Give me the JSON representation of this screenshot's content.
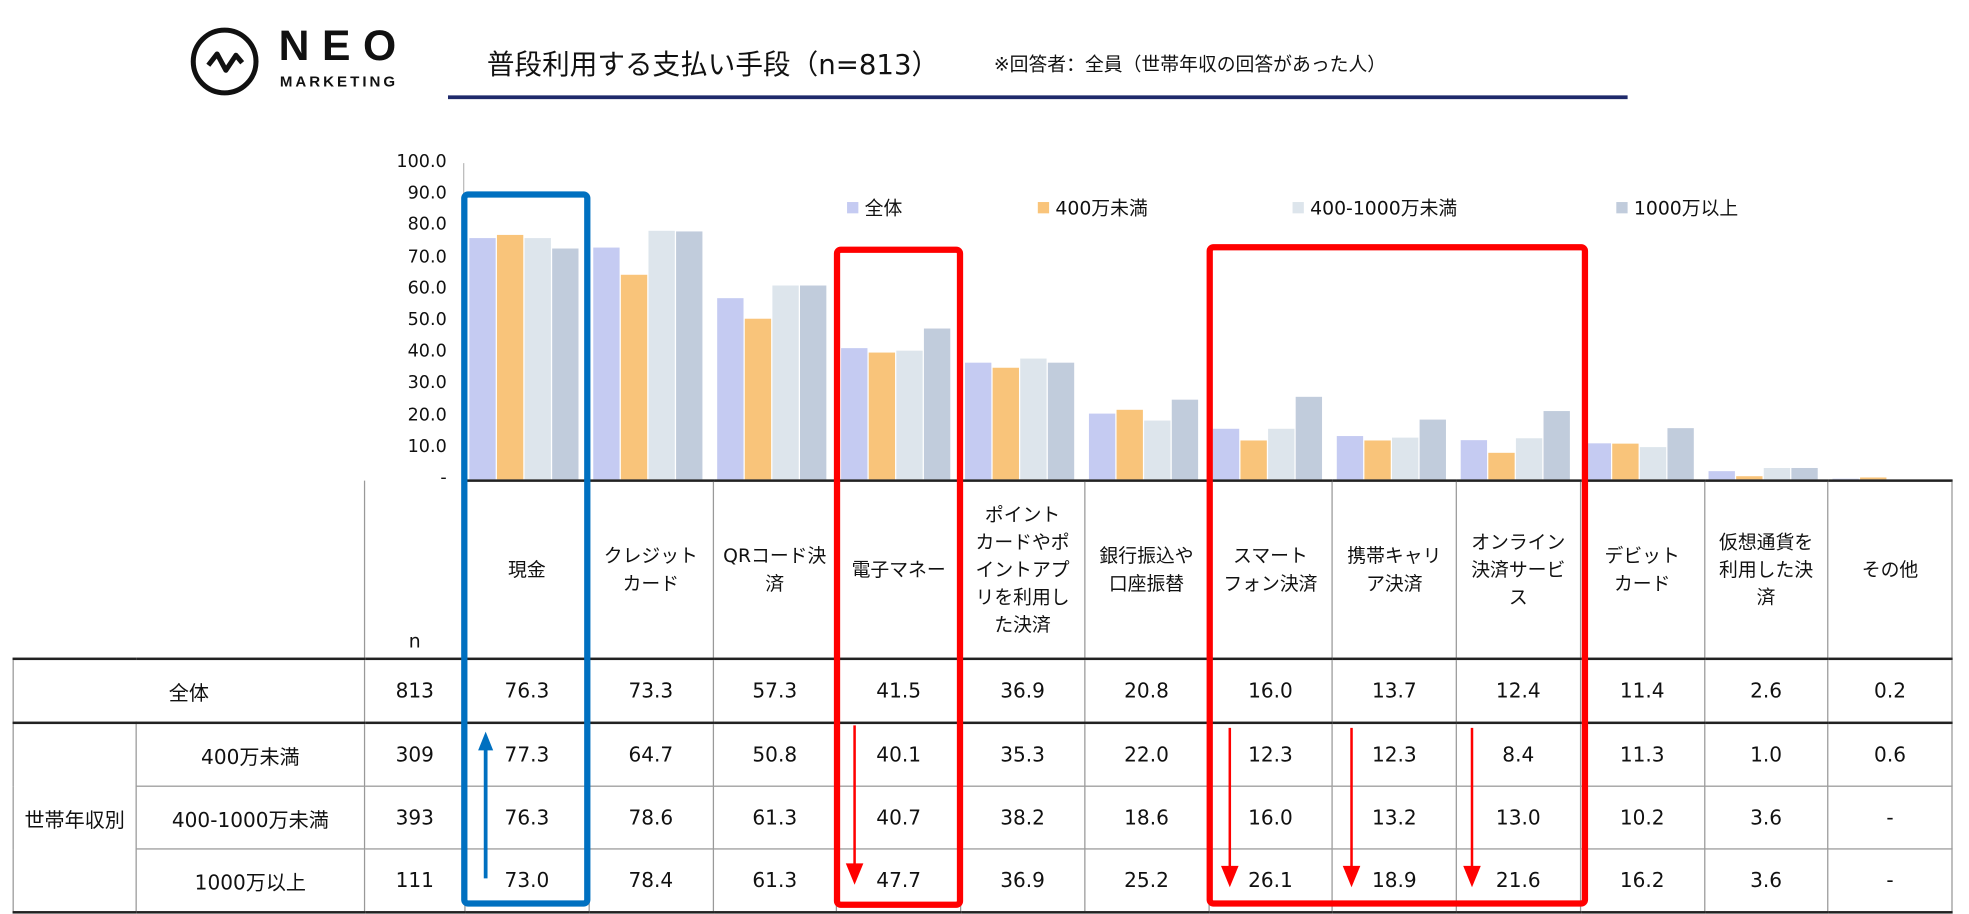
{
  "logo": {
    "name": "NEO",
    "sub": "MARKETING"
  },
  "header": {
    "title": "普段利用する支払い手段（n=813）",
    "subtitle": "※回答者：全員（世帯年収の回答があった人）"
  },
  "colors": {
    "all": "#C5CBF2",
    "under400": "#F9C47A",
    "mid": "#DDE5EC",
    "over1000": "#C1CCDC",
    "blue_box": "#0070C0",
    "red_box": "#FF0000",
    "rule": "#1F2A6B"
  },
  "chart_data": {
    "type": "bar",
    "title": "普段利用する支払い手段（n=813）",
    "ylim": [
      0,
      100
    ],
    "yticks": [
      "100.0",
      "90.0",
      "80.0",
      "70.0",
      "60.0",
      "50.0",
      "40.0",
      "30.0",
      "20.0",
      "10.0",
      "-"
    ],
    "categories": [
      "現金",
      "クレジットカード",
      "QRコード決済",
      "電子マネー",
      "ポイントカードやポイントアプリを利用した決済",
      "銀行振込や口座振替",
      "スマートフォン決済",
      "携帯キャリア決済",
      "オンライン決済サービス",
      "デビットカード",
      "仮想通貨を利用した決済",
      "その他"
    ],
    "legend": "top",
    "series": [
      {
        "name": "全体",
        "values": [
          76.3,
          73.3,
          57.3,
          41.5,
          36.9,
          20.8,
          16.0,
          13.7,
          12.4,
          11.4,
          2.6,
          0.2
        ]
      },
      {
        "name": "400万未満",
        "values": [
          77.3,
          64.7,
          50.8,
          40.1,
          35.3,
          22.0,
          12.3,
          12.3,
          8.4,
          11.3,
          1.0,
          0.6
        ]
      },
      {
        "name": "400-1000万未満",
        "values": [
          76.3,
          78.6,
          61.3,
          40.7,
          38.2,
          18.6,
          16.0,
          13.2,
          13.0,
          10.2,
          3.6,
          0
        ]
      },
      {
        "name": "1000万以上",
        "values": [
          73.0,
          78.4,
          61.3,
          47.7,
          36.9,
          25.2,
          26.1,
          18.9,
          21.6,
          16.2,
          3.6,
          0
        ]
      }
    ]
  },
  "table": {
    "n_label": "n",
    "header_lines": [
      [
        "現金"
      ],
      [
        "クレジット",
        "カード"
      ],
      [
        "QRコード決",
        "済"
      ],
      [
        "電子マネー"
      ],
      [
        "ポイント",
        "カードやポ",
        "イントアプ",
        "リを利用し",
        "た決済"
      ],
      [
        "銀行振込や",
        "口座振替"
      ],
      [
        "スマート",
        "フォン決済"
      ],
      [
        "携帯キャリ",
        "ア決済"
      ],
      [
        "オンライン",
        "決済サービ",
        "ス"
      ],
      [
        "デビット",
        "カード"
      ],
      [
        "仮想通貨を",
        "利用した決",
        "済"
      ],
      [
        "その他"
      ]
    ],
    "group_label": "世帯年収別",
    "rows": [
      {
        "label": "全体",
        "n": "813",
        "cells": [
          "76.3",
          "73.3",
          "57.3",
          "41.5",
          "36.9",
          "20.8",
          "16.0",
          "13.7",
          "12.4",
          "11.4",
          "2.6",
          "0.2"
        ]
      },
      {
        "label": "400万未満",
        "n": "309",
        "cells": [
          "77.3",
          "64.7",
          "50.8",
          "40.1",
          "35.3",
          "22.0",
          "12.3",
          "12.3",
          "8.4",
          "11.3",
          "1.0",
          "0.6"
        ]
      },
      {
        "label": "400-1000万未満",
        "n": "393",
        "cells": [
          "76.3",
          "78.6",
          "61.3",
          "40.7",
          "38.2",
          "18.6",
          "16.0",
          "13.2",
          "13.0",
          "10.2",
          "3.6",
          "-"
        ]
      },
      {
        "label": "1000万以上",
        "n": "111",
        "cells": [
          "73.0",
          "78.4",
          "61.3",
          "47.7",
          "36.9",
          "25.2",
          "26.1",
          "18.9",
          "21.6",
          "16.2",
          "3.6",
          "-"
        ]
      }
    ]
  }
}
